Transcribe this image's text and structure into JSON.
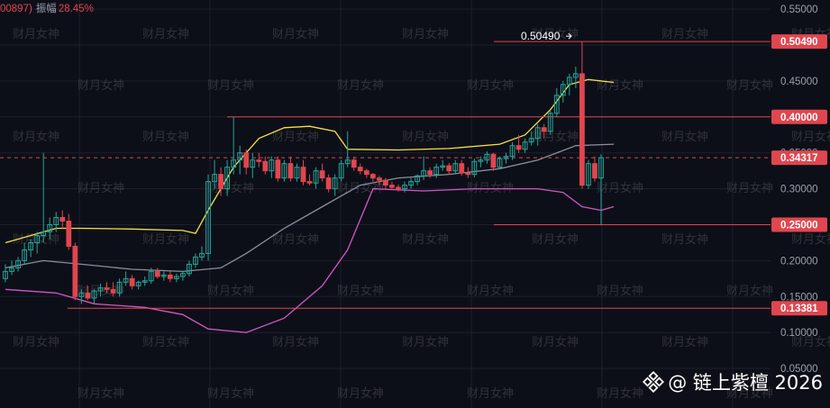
{
  "header": {
    "prefix": "00897)",
    "amp_label": "振幅",
    "amp_value": "28.45%"
  },
  "watermark": "财月女神",
  "brand": {
    "text": "@ 链上紫檀 2026"
  },
  "colors": {
    "bg": "#0d0f18",
    "up": "#26a69a",
    "down": "#e0464f",
    "mid": "#8a8f9c",
    "upper": "#f5e04a",
    "lower": "#d356c4",
    "level": "#e0464f"
  },
  "chart_data": {
    "type": "candlestick",
    "ylim": [
      0.05,
      0.55
    ],
    "yticks": [
      0.55,
      0.5,
      0.45,
      0.4,
      0.35,
      0.3,
      0.25,
      0.2,
      0.15,
      0.1,
      0.05
    ],
    "ytick_labels": [
      "0.55000",
      "0.50000",
      "0.45000",
      "0.40000",
      "0.35000",
      "0.30000",
      "0.25000",
      "0.20000",
      "0.15000",
      "0.10000",
      "0.05000"
    ],
    "grid": true,
    "candles": [
      [
        0.175,
        0.195,
        0.17,
        0.185
      ],
      [
        0.185,
        0.2,
        0.18,
        0.19
      ],
      [
        0.19,
        0.205,
        0.185,
        0.2
      ],
      [
        0.2,
        0.225,
        0.195,
        0.215
      ],
      [
        0.215,
        0.23,
        0.205,
        0.225
      ],
      [
        0.225,
        0.24,
        0.21,
        0.235
      ],
      [
        0.235,
        0.35,
        0.225,
        0.24
      ],
      [
        0.24,
        0.26,
        0.23,
        0.25
      ],
      [
        0.25,
        0.268,
        0.24,
        0.26
      ],
      [
        0.26,
        0.27,
        0.245,
        0.255
      ],
      [
        0.255,
        0.265,
        0.215,
        0.22
      ],
      [
        0.22,
        0.225,
        0.145,
        0.15
      ],
      [
        0.15,
        0.16,
        0.14,
        0.155
      ],
      [
        0.155,
        0.165,
        0.145,
        0.148
      ],
      [
        0.148,
        0.16,
        0.14,
        0.158
      ],
      [
        0.158,
        0.168,
        0.15,
        0.162
      ],
      [
        0.162,
        0.17,
        0.155,
        0.16
      ],
      [
        0.16,
        0.17,
        0.15,
        0.155
      ],
      [
        0.155,
        0.175,
        0.15,
        0.17
      ],
      [
        0.17,
        0.185,
        0.165,
        0.175
      ],
      [
        0.175,
        0.18,
        0.16,
        0.165
      ],
      [
        0.165,
        0.172,
        0.16,
        0.17
      ],
      [
        0.17,
        0.178,
        0.165,
        0.172
      ],
      [
        0.172,
        0.19,
        0.168,
        0.185
      ],
      [
        0.185,
        0.19,
        0.175,
        0.178
      ],
      [
        0.178,
        0.185,
        0.172,
        0.18
      ],
      [
        0.18,
        0.185,
        0.17,
        0.175
      ],
      [
        0.175,
        0.182,
        0.17,
        0.178
      ],
      [
        0.178,
        0.186,
        0.172,
        0.182
      ],
      [
        0.182,
        0.2,
        0.178,
        0.195
      ],
      [
        0.195,
        0.21,
        0.19,
        0.205
      ],
      [
        0.205,
        0.22,
        0.2,
        0.21
      ],
      [
        0.21,
        0.32,
        0.2,
        0.31
      ],
      [
        0.31,
        0.34,
        0.3,
        0.32
      ],
      [
        0.32,
        0.33,
        0.29,
        0.3
      ],
      [
        0.3,
        0.34,
        0.29,
        0.33
      ],
      [
        0.33,
        0.4,
        0.32,
        0.34
      ],
      [
        0.34,
        0.36,
        0.32,
        0.35
      ],
      [
        0.35,
        0.355,
        0.32,
        0.33
      ],
      [
        0.33,
        0.35,
        0.315,
        0.34
      ],
      [
        0.34,
        0.35,
        0.33,
        0.338
      ],
      [
        0.338,
        0.345,
        0.32,
        0.325
      ],
      [
        0.325,
        0.345,
        0.315,
        0.34
      ],
      [
        0.34,
        0.345,
        0.31,
        0.315
      ],
      [
        0.315,
        0.34,
        0.31,
        0.335
      ],
      [
        0.335,
        0.345,
        0.31,
        0.315
      ],
      [
        0.315,
        0.335,
        0.31,
        0.33
      ],
      [
        0.33,
        0.34,
        0.305,
        0.31
      ],
      [
        0.31,
        0.32,
        0.305,
        0.308
      ],
      [
        0.308,
        0.33,
        0.3,
        0.325
      ],
      [
        0.325,
        0.335,
        0.31,
        0.315
      ],
      [
        0.315,
        0.32,
        0.295,
        0.3
      ],
      [
        0.3,
        0.32,
        0.29,
        0.315
      ],
      [
        0.315,
        0.34,
        0.31,
        0.335
      ],
      [
        0.335,
        0.38,
        0.33,
        0.34
      ],
      [
        0.34,
        0.345,
        0.325,
        0.33
      ],
      [
        0.33,
        0.335,
        0.32,
        0.325
      ],
      [
        0.325,
        0.328,
        0.315,
        0.32
      ],
      [
        0.32,
        0.322,
        0.31,
        0.315
      ],
      [
        0.315,
        0.318,
        0.305,
        0.312
      ],
      [
        0.312,
        0.315,
        0.3,
        0.305
      ],
      [
        0.305,
        0.31,
        0.298,
        0.302
      ],
      [
        0.302,
        0.306,
        0.296,
        0.3
      ],
      [
        0.3,
        0.31,
        0.295,
        0.305
      ],
      [
        0.305,
        0.315,
        0.3,
        0.31
      ],
      [
        0.31,
        0.32,
        0.305,
        0.318
      ],
      [
        0.318,
        0.345,
        0.312,
        0.325
      ],
      [
        0.325,
        0.33,
        0.315,
        0.32
      ],
      [
        0.32,
        0.335,
        0.315,
        0.33
      ],
      [
        0.33,
        0.34,
        0.325,
        0.332
      ],
      [
        0.332,
        0.336,
        0.32,
        0.325
      ],
      [
        0.325,
        0.34,
        0.322,
        0.335
      ],
      [
        0.335,
        0.34,
        0.318,
        0.322
      ],
      [
        0.322,
        0.33,
        0.315,
        0.32
      ],
      [
        0.32,
        0.342,
        0.316,
        0.338
      ],
      [
        0.338,
        0.345,
        0.33,
        0.34
      ],
      [
        0.34,
        0.352,
        0.335,
        0.348
      ],
      [
        0.348,
        0.35,
        0.325,
        0.33
      ],
      [
        0.33,
        0.345,
        0.328,
        0.342
      ],
      [
        0.342,
        0.35,
        0.335,
        0.345
      ],
      [
        0.345,
        0.365,
        0.34,
        0.36
      ],
      [
        0.36,
        0.375,
        0.35,
        0.355
      ],
      [
        0.355,
        0.37,
        0.35,
        0.365
      ],
      [
        0.365,
        0.38,
        0.36,
        0.37
      ],
      [
        0.37,
        0.39,
        0.36,
        0.385
      ],
      [
        0.385,
        0.39,
        0.37,
        0.38
      ],
      [
        0.38,
        0.41,
        0.375,
        0.405
      ],
      [
        0.405,
        0.44,
        0.4,
        0.43
      ],
      [
        0.43,
        0.45,
        0.42,
        0.445
      ],
      [
        0.445,
        0.46,
        0.43,
        0.455
      ],
      [
        0.455,
        0.47,
        0.44,
        0.46
      ],
      [
        0.46,
        0.5049,
        0.3,
        0.305
      ],
      [
        0.305,
        0.34,
        0.3,
        0.335
      ],
      [
        0.335,
        0.345,
        0.31,
        0.315
      ],
      [
        0.315,
        0.348,
        0.25,
        0.3432
      ]
    ],
    "levels": [
      {
        "value": 0.5049,
        "label": "0.50490"
      },
      {
        "value": 0.4,
        "label": "0.40000"
      },
      {
        "value": 0.3432,
        "label": "0.34317"
      },
      {
        "value": 0.25,
        "label": "0.25000"
      },
      {
        "value": 0.13381,
        "label": "0.13381"
      }
    ],
    "annotation": {
      "text": "0.50490",
      "value": 0.5049
    },
    "bands": {
      "upper_points": [
        [
          0,
          0.225
        ],
        [
          8,
          0.245
        ],
        [
          12,
          0.245
        ],
        [
          20,
          0.244
        ],
        [
          28,
          0.242
        ],
        [
          30,
          0.238
        ],
        [
          32,
          0.27
        ],
        [
          36,
          0.33
        ],
        [
          40,
          0.37
        ],
        [
          44,
          0.385
        ],
        [
          48,
          0.387
        ],
        [
          52,
          0.38
        ],
        [
          54,
          0.355
        ],
        [
          62,
          0.354
        ],
        [
          70,
          0.356
        ],
        [
          78,
          0.362
        ],
        [
          82,
          0.375
        ],
        [
          86,
          0.41
        ],
        [
          89,
          0.445
        ],
        [
          92,
          0.452
        ],
        [
          96,
          0.448
        ]
      ],
      "mid_points": [
        [
          0,
          0.19
        ],
        [
          6,
          0.2
        ],
        [
          12,
          0.195
        ],
        [
          20,
          0.188
        ],
        [
          28,
          0.185
        ],
        [
          34,
          0.19
        ],
        [
          38,
          0.21
        ],
        [
          44,
          0.245
        ],
        [
          50,
          0.275
        ],
        [
          56,
          0.305
        ],
        [
          62,
          0.315
        ],
        [
          70,
          0.32
        ],
        [
          78,
          0.328
        ],
        [
          84,
          0.34
        ],
        [
          90,
          0.36
        ],
        [
          96,
          0.362
        ]
      ],
      "lower_points": [
        [
          0,
          0.16
        ],
        [
          8,
          0.155
        ],
        [
          14,
          0.14
        ],
        [
          22,
          0.135
        ],
        [
          28,
          0.125
        ],
        [
          32,
          0.105
        ],
        [
          38,
          0.1
        ],
        [
          44,
          0.12
        ],
        [
          50,
          0.165
        ],
        [
          54,
          0.215
        ],
        [
          58,
          0.3
        ],
        [
          66,
          0.297
        ],
        [
          74,
          0.3
        ],
        [
          80,
          0.3
        ],
        [
          84,
          0.3
        ],
        [
          88,
          0.295
        ],
        [
          91,
          0.275
        ],
        [
          94,
          0.27
        ],
        [
          96,
          0.275
        ]
      ]
    }
  }
}
